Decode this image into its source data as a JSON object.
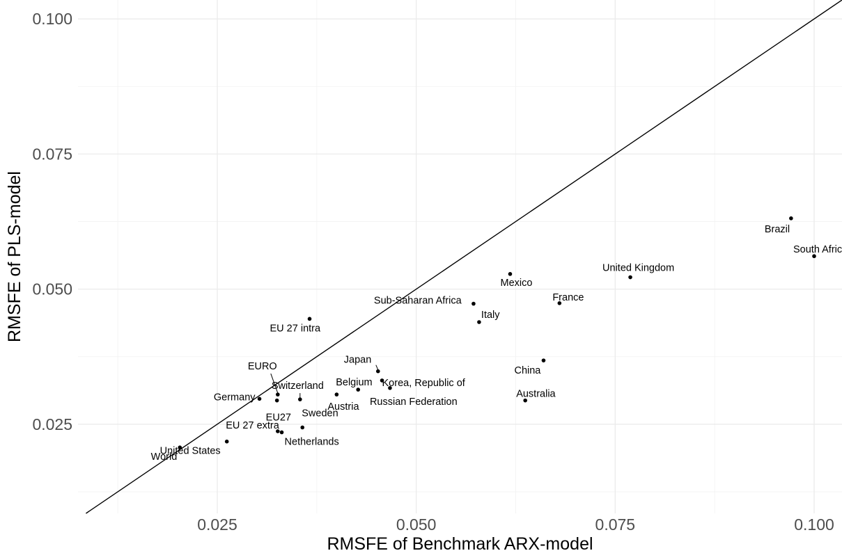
{
  "chart_data": {
    "type": "scatter",
    "xlabel": "RMSFE of Benchmark ARX-model",
    "ylabel": "RMSFE of PLS-model",
    "xlim": [
      0.0075,
      0.1035
    ],
    "ylim": [
      0.0085,
      0.1035
    ],
    "x_ticks": [
      0.025,
      0.05,
      0.075,
      0.1
    ],
    "x_tick_labels": [
      "0.025",
      "0.050",
      "0.075",
      "0.100"
    ],
    "y_ticks": [
      0.025,
      0.05,
      0.075,
      0.1
    ],
    "y_tick_labels": [
      "0.025",
      "0.050",
      "0.075",
      "0.100"
    ],
    "grid": true,
    "legend": "none",
    "reference_line": {
      "type": "y=x"
    },
    "points": [
      {
        "label": "World",
        "x": 0.0203,
        "y": 0.0207
      },
      {
        "label": "United States",
        "x": 0.0262,
        "y": 0.0218
      },
      {
        "label": "EU 27 extra",
        "x": 0.0326,
        "y": 0.0237
      },
      {
        "label": "Netherlands",
        "x": 0.0331,
        "y": 0.0235
      },
      {
        "label": "Sweden",
        "x": 0.0357,
        "y": 0.0244
      },
      {
        "label": "Germany",
        "x": 0.0303,
        "y": 0.0297
      },
      {
        "label": "EU27",
        "x": 0.0325,
        "y": 0.0294
      },
      {
        "label": "EURO",
        "x": 0.0326,
        "y": 0.0305
      },
      {
        "label": "Switzerland",
        "x": 0.0354,
        "y": 0.0296
      },
      {
        "label": "Austria",
        "x": 0.04,
        "y": 0.0305
      },
      {
        "label": "Belgium",
        "x": 0.0427,
        "y": 0.0314
      },
      {
        "label": "Japan",
        "x": 0.0452,
        "y": 0.0348
      },
      {
        "label": "Korea, Republic of",
        "x": 0.0457,
        "y": 0.0331
      },
      {
        "label": "Russian Federation",
        "x": 0.0467,
        "y": 0.0317
      },
      {
        "label": "EU 27 intra",
        "x": 0.0366,
        "y": 0.0445
      },
      {
        "label": "Sub-Saharan Africa",
        "x": 0.0572,
        "y": 0.0473
      },
      {
        "label": "Italy",
        "x": 0.0579,
        "y": 0.0439
      },
      {
        "label": "Mexico",
        "x": 0.0618,
        "y": 0.0528
      },
      {
        "label": "China",
        "x": 0.066,
        "y": 0.0368
      },
      {
        "label": "Australia",
        "x": 0.0637,
        "y": 0.0294
      },
      {
        "label": "France",
        "x": 0.068,
        "y": 0.0474
      },
      {
        "label": "United Kingdom",
        "x": 0.0769,
        "y": 0.0522
      },
      {
        "label": "Brazil",
        "x": 0.0971,
        "y": 0.0631
      },
      {
        "label": "South Africa",
        "x": 0.1,
        "y": 0.0561
      }
    ]
  }
}
